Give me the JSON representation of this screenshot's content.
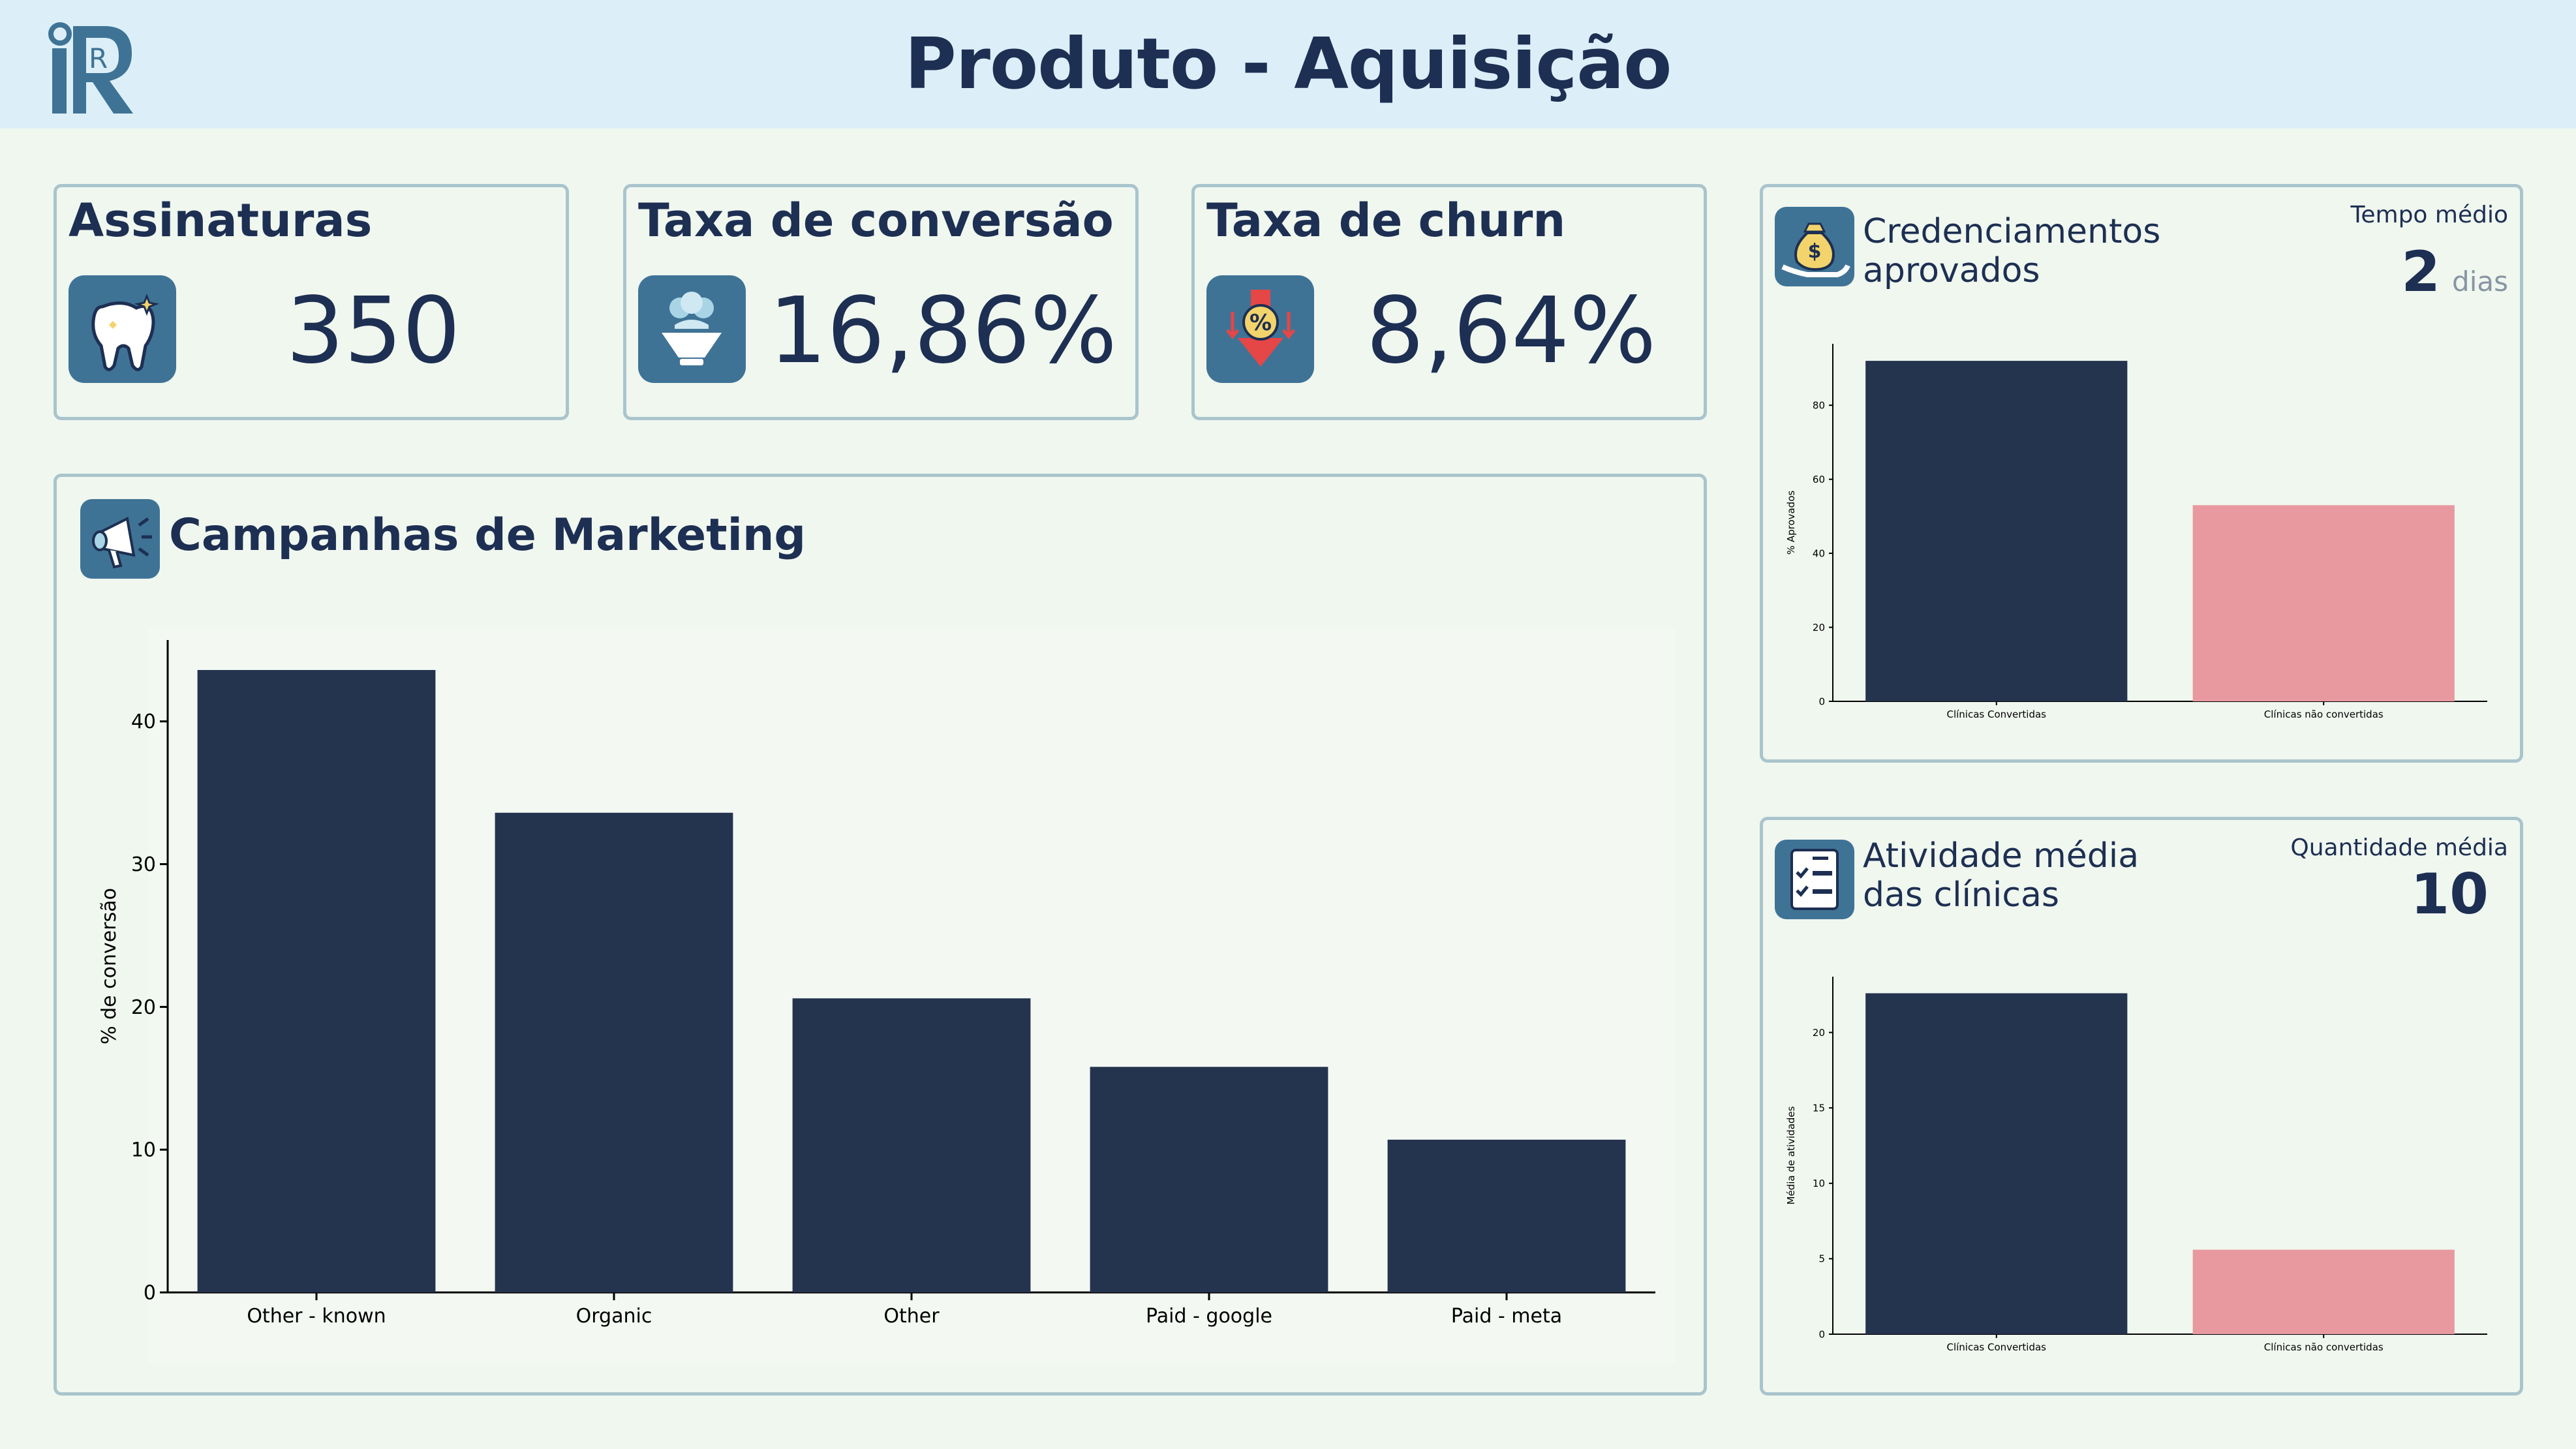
{
  "header": {
    "title": "Produto - Aquisição",
    "logo_text": "R"
  },
  "kpis": [
    {
      "title": "Assinaturas",
      "value": "350",
      "icon": "tooth-icon"
    },
    {
      "title": "Taxa de conversão",
      "value": "16,86%",
      "icon": "funnel-icon"
    },
    {
      "title": "Taxa de churn",
      "value": "8,64%",
      "icon": "churn-icon"
    }
  ],
  "marketing": {
    "title": "Campanhas de Marketing",
    "icon": "megaphone-icon"
  },
  "credenciamentos": {
    "title_line1": "Credenciamentos",
    "title_line2": "aprovados",
    "subtitle": "Tempo médio",
    "value": "2",
    "unit": "dias",
    "icon": "money-bag-icon"
  },
  "atividade": {
    "title_line1": "Atividade média",
    "title_line2": "das clínicas",
    "subtitle": "Quantidade média",
    "value": "10",
    "icon": "checklist-icon"
  },
  "colors": {
    "dark": "#24344f",
    "pink": "#e8999f",
    "accent": "#3f7396"
  },
  "chart_data": [
    {
      "type": "bar",
      "categories": [
        "Other - known",
        "Organic",
        "Other",
        "Paid - google",
        "Paid - meta"
      ],
      "values": [
        43.6,
        33.6,
        20.6,
        15.8,
        10.7
      ],
      "title": "",
      "xlabel": "",
      "ylabel": "% de conversão",
      "ylim": [
        0,
        45.7
      ],
      "yticks": [
        0,
        10,
        20,
        30,
        40
      ],
      "grid": false
    },
    {
      "type": "bar",
      "categories": [
        "Clínicas Convertidas",
        "Clínicas não convertidas"
      ],
      "values": [
        92,
        53
      ],
      "title": "",
      "xlabel": "",
      "ylabel": "% Aprovados",
      "ylim": [
        0,
        96.6
      ],
      "yticks": [
        0,
        20,
        40,
        60,
        80
      ],
      "grid": false
    },
    {
      "type": "bar",
      "categories": [
        "Clínicas Convertidas",
        "Clínicas não convertidas"
      ],
      "values": [
        22.6,
        5.6
      ],
      "title": "",
      "xlabel": "",
      "ylabel": "Média de atividades",
      "ylim": [
        0,
        23.7
      ],
      "yticks": [
        0,
        5,
        10,
        15,
        20
      ],
      "grid": false
    }
  ]
}
